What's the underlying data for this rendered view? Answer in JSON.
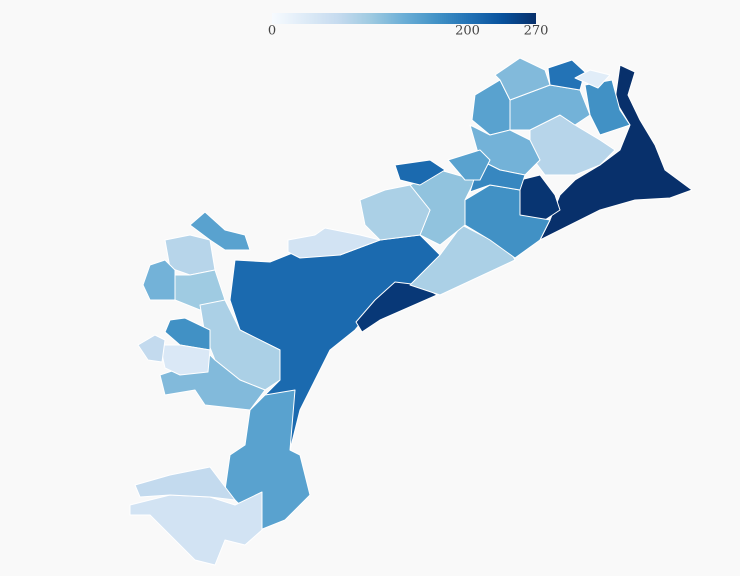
{
  "map": {
    "range": [
      0,
      270
    ],
    "ticks": [
      0,
      200,
      270
    ],
    "colors": [
      "#f7fbff",
      "#deebf7",
      "#c6dbef",
      "#9ecae1",
      "#6baed6",
      "#4292c6",
      "#2171b5",
      "#08519c",
      "#08306b"
    ],
    "regions": [
      270,
      265,
      210,
      262,
      90,
      170,
      110,
      80,
      130,
      170,
      150,
      200,
      120,
      130,
      180,
      150,
      210,
      90,
      50,
      80,
      150,
      100,
      130,
      90,
      120,
      150,
      50,
      70,
      170,
      40,
      70,
      30
    ]
  }
}
